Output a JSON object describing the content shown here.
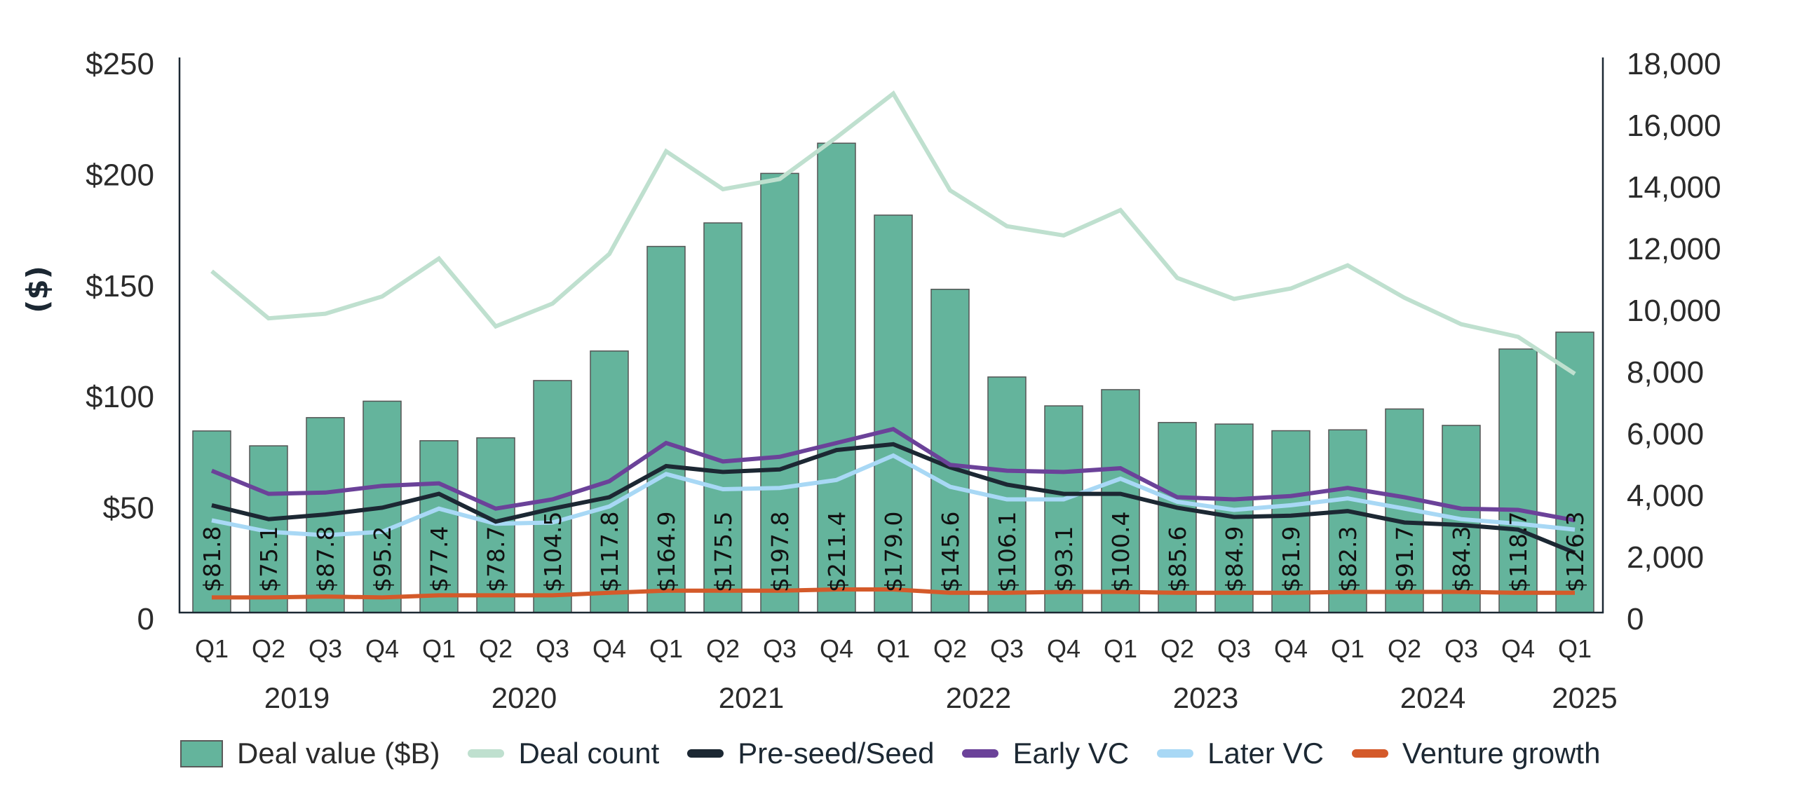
{
  "chart_data": {
    "type": "bar+line",
    "title": "",
    "ylabel": "($)",
    "ylabel_right": "",
    "xlabel": "",
    "ylim": [
      0,
      250
    ],
    "ylim_right": [
      0,
      18000
    ],
    "left_ticks": [
      {
        "value": 0,
        "label": "0"
      },
      {
        "value": 50,
        "label": "$50"
      },
      {
        "value": 100,
        "label": "$100"
      },
      {
        "value": 150,
        "label": "$150"
      },
      {
        "value": 200,
        "label": "$200"
      },
      {
        "value": 250,
        "label": "$250"
      }
    ],
    "right_ticks": [
      {
        "value": 0,
        "label": "0"
      },
      {
        "value": 2000,
        "label": "2,000"
      },
      {
        "value": 4000,
        "label": "4,000"
      },
      {
        "value": 6000,
        "label": "6,000"
      },
      {
        "value": 8000,
        "label": "8,000"
      },
      {
        "value": 10000,
        "label": "10,000"
      },
      {
        "value": 12000,
        "label": "12,000"
      },
      {
        "value": 14000,
        "label": "14,000"
      },
      {
        "value": 16000,
        "label": "16,000"
      },
      {
        "value": 18000,
        "label": "18,000"
      }
    ],
    "grid": false,
    "legend_position": "bottom",
    "categories": [
      "Q1",
      "Q2",
      "Q3",
      "Q4",
      "Q1",
      "Q2",
      "Q3",
      "Q4",
      "Q1",
      "Q2",
      "Q3",
      "Q4",
      "Q1",
      "Q2",
      "Q3",
      "Q4",
      "Q1",
      "Q2",
      "Q3",
      "Q4",
      "Q1",
      "Q2",
      "Q3",
      "Q4",
      "Q1"
    ],
    "year_groups": [
      {
        "label": "2019",
        "start": 0,
        "end": 3
      },
      {
        "label": "2020",
        "start": 4,
        "end": 7
      },
      {
        "label": "2021",
        "start": 8,
        "end": 11
      },
      {
        "label": "2022",
        "start": 12,
        "end": 15
      },
      {
        "label": "2023",
        "start": 16,
        "end": 19
      },
      {
        "label": "2024",
        "start": 20,
        "end": 23
      },
      {
        "label": "2025",
        "start": 24,
        "end": 24
      }
    ],
    "series": [
      {
        "name": "Deal value ($B)",
        "type": "bar",
        "axis": "left",
        "color": "#64b49c",
        "values": [
          81.8,
          75.1,
          87.8,
          95.2,
          77.4,
          78.7,
          104.5,
          117.8,
          164.9,
          175.5,
          197.8,
          211.4,
          179.0,
          145.6,
          106.1,
          93.1,
          100.4,
          85.6,
          84.9,
          81.9,
          82.3,
          91.7,
          84.3,
          118.7,
          126.3
        ],
        "labels": [
          "$81.8",
          "$75.1",
          "$87.8",
          "$95.2",
          "$77.4",
          "$78.7",
          "$104.5",
          "$117.8",
          "$164.9",
          "$175.5",
          "$197.8",
          "$211.4",
          "$179.0",
          "$145.6",
          "$106.1",
          "$93.1",
          "$100.4",
          "$85.6",
          "$84.9",
          "$81.9",
          "$82.3",
          "$91.7",
          "$84.3",
          "$118.7",
          "$126.3"
        ]
      },
      {
        "name": "Deal count",
        "type": "line",
        "axis": "right",
        "color": "#bfe0cf",
        "values": [
          11070,
          9540,
          9690,
          10250,
          11480,
          9280,
          10020,
          11630,
          14960,
          13730,
          14060,
          15410,
          16830,
          13690,
          12530,
          12230,
          13050,
          10850,
          10170,
          10510,
          11260,
          10210,
          9350,
          8940,
          7740
        ]
      },
      {
        "name": "Pre-seed/Seed",
        "type": "line",
        "axis": "right",
        "color": "#1c2833",
        "values": [
          3480,
          3030,
          3180,
          3400,
          3850,
          2950,
          3370,
          3740,
          4750,
          4560,
          4640,
          5270,
          5460,
          4710,
          4150,
          3850,
          3850,
          3400,
          3100,
          3140,
          3290,
          2920,
          2840,
          2690,
          1940
        ]
      },
      {
        "name": "Early VC",
        "type": "line",
        "axis": "right",
        "color": "#6b4299",
        "values": [
          4600,
          3850,
          3890,
          4110,
          4190,
          3370,
          3670,
          4260,
          5500,
          4900,
          5050,
          5500,
          5950,
          4790,
          4600,
          4560,
          4680,
          3740,
          3670,
          3780,
          4040,
          3740,
          3370,
          3330,
          2990
        ]
      },
      {
        "name": "Later VC",
        "type": "line",
        "axis": "right",
        "color": "#a8d8f5",
        "values": [
          2990,
          2620,
          2510,
          2620,
          3370,
          2880,
          2920,
          3440,
          4490,
          4000,
          4040,
          4300,
          5090,
          4080,
          3670,
          3670,
          4340,
          3590,
          3330,
          3480,
          3700,
          3370,
          3030,
          2880,
          2690
        ]
      },
      {
        "name": "Venture growth",
        "type": "line",
        "axis": "right",
        "color": "#d45a2a",
        "values": [
          490,
          490,
          520,
          490,
          560,
          560,
          560,
          640,
          710,
          710,
          710,
          750,
          750,
          640,
          640,
          670,
          670,
          640,
          640,
          640,
          670,
          670,
          670,
          640,
          640
        ]
      }
    ]
  }
}
